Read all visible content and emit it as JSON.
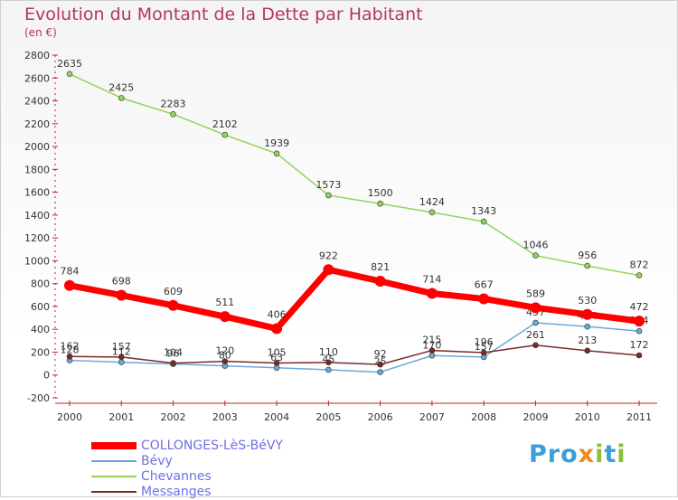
{
  "title": "Evolution du Montant de la Dette par Habitant",
  "subtitle": "(en €)",
  "logo": "Proxiti",
  "chart_data": {
    "type": "line",
    "x": [
      "2000",
      "2001",
      "2002",
      "2003",
      "2004",
      "2005",
      "2006",
      "2007",
      "2008",
      "2009",
      "2010",
      "2011"
    ],
    "ylim": [
      -200,
      2800
    ],
    "yticks": [
      -200,
      0,
      200,
      400,
      600,
      800,
      1000,
      1200,
      1400,
      1600,
      1800,
      2000,
      2200,
      2400,
      2600,
      2800
    ],
    "grid": false,
    "legend_position": "bottom-left",
    "series": [
      {
        "name": "COLLONGES-LèS-BéVY",
        "color": "#ff0000",
        "values": [
          784,
          698,
          609,
          511,
          406,
          922,
          821,
          714,
          667,
          589,
          530,
          472
        ]
      },
      {
        "name": "Bévy",
        "color": "#6aa8d6",
        "values": [
          128,
          112,
          96,
          80,
          63,
          45,
          25,
          170,
          157,
          457,
          424,
          384
        ]
      },
      {
        "name": "Chevannes",
        "color": "#8fd45b",
        "values": [
          2635,
          2425,
          2283,
          2102,
          1939,
          1573,
          1500,
          1424,
          1343,
          1046,
          956,
          872
        ]
      },
      {
        "name": "Messanges",
        "color": "#7a2a2a",
        "values": [
          162,
          157,
          104,
          120,
          105,
          110,
          92,
          215,
          196,
          261,
          213,
          172
        ]
      }
    ]
  }
}
